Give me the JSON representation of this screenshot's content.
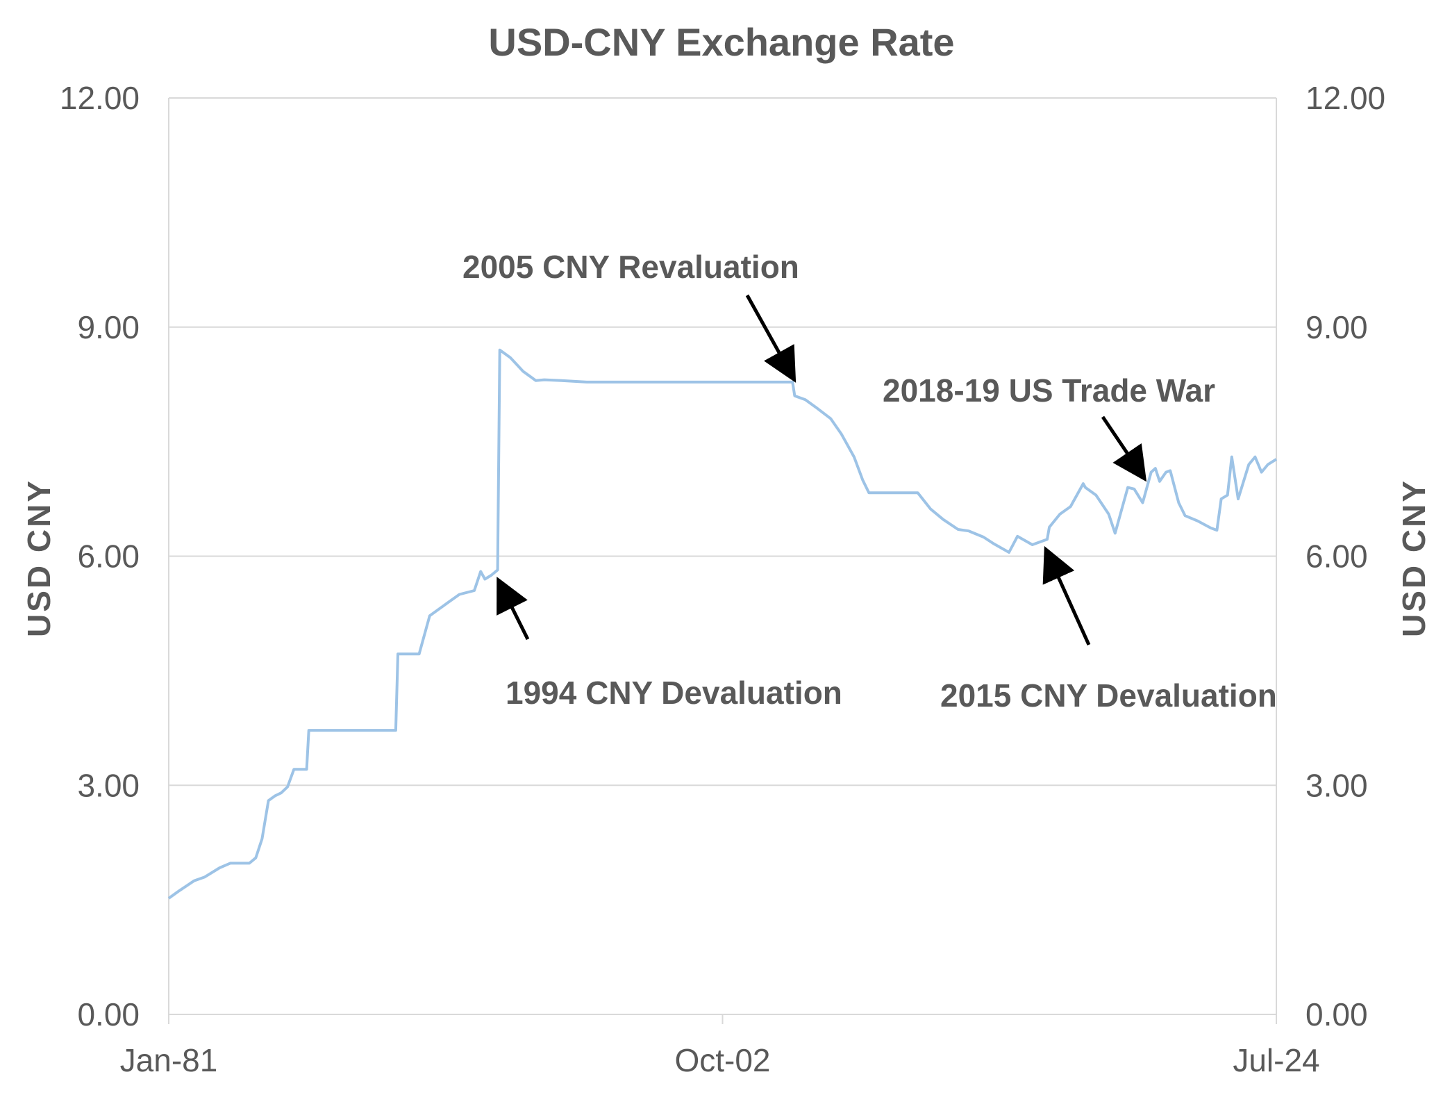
{
  "chart_data": {
    "type": "line",
    "title": "USD-CNY Exchange Rate",
    "ylabel_left": "USD  CNY",
    "ylabel_right": "USD  CNY",
    "xlabel": "",
    "ylim": [
      0,
      12
    ],
    "yticks": [
      "0.00",
      "3.00",
      "6.00",
      "9.00",
      "12.00"
    ],
    "yticks_right": [
      "0.00",
      "3.00",
      "6.00",
      "9.00",
      "12.00"
    ],
    "xlim": [
      "1981-01",
      "2024-07"
    ],
    "xticks": [
      {
        "date": "1981-01",
        "label": "Jan-81"
      },
      {
        "date": "2002-10",
        "label": "Oct-02"
      },
      {
        "date": "2024-07",
        "label": "Jul-24"
      }
    ],
    "grid": true,
    "line_color": "#9dc3e6",
    "series": [
      {
        "x": [
          "1981-01",
          "1981-06",
          "1982-01",
          "1982-06",
          "1983-01",
          "1983-06",
          "1984-01",
          "1984-03",
          "1984-06",
          "1984-09",
          "1984-12",
          "1985-03",
          "1985-06",
          "1985-09",
          "1985-12",
          "1986-03",
          "1986-06",
          "1986-07",
          "1986-09",
          "1986-12",
          "1987-01",
          "1989-12",
          "1990-01",
          "1990-11",
          "1991-04",
          "1992-01",
          "1992-06",
          "1993-01",
          "1993-04",
          "1993-06",
          "1993-09",
          "1993-12",
          "1994-01",
          "1994-06",
          "1994-12",
          "1995-06",
          "1995-10",
          "1996-06",
          "1997-06",
          "2000-01",
          "2003-01",
          "2005-07",
          "2005-08",
          "2006-01",
          "2006-06",
          "2007-01",
          "2007-06",
          "2007-12",
          "2008-04",
          "2008-07",
          "2009-01",
          "2010-06",
          "2010-12",
          "2011-06",
          "2012-01",
          "2012-06",
          "2013-01",
          "2013-06",
          "2014-01",
          "2014-05",
          "2014-12",
          "2015-07",
          "2015-08",
          "2016-01",
          "2016-06",
          "2016-12",
          "2017-01",
          "2017-06",
          "2017-12",
          "2018-03",
          "2018-06",
          "2018-09",
          "2018-12",
          "2019-04",
          "2019-08",
          "2019-10",
          "2019-12",
          "2020-03",
          "2020-05",
          "2020-09",
          "2020-12",
          "2021-06",
          "2021-12",
          "2022-03",
          "2022-05",
          "2022-08",
          "2022-10",
          "2023-01",
          "2023-06",
          "2023-09",
          "2023-12",
          "2024-03",
          "2024-07"
        ],
        "values": [
          1.52,
          1.62,
          1.75,
          1.8,
          1.92,
          1.98,
          1.98,
          1.98,
          2.05,
          2.3,
          2.8,
          2.86,
          2.9,
          2.98,
          3.21,
          3.21,
          3.21,
          3.72,
          3.72,
          3.72,
          3.72,
          3.72,
          4.72,
          4.72,
          5.22,
          5.4,
          5.5,
          5.55,
          5.8,
          5.7,
          5.75,
          5.82,
          8.7,
          8.6,
          8.42,
          8.3,
          8.31,
          8.3,
          8.28,
          8.28,
          8.28,
          8.28,
          8.1,
          8.05,
          7.95,
          7.8,
          7.6,
          7.3,
          7.0,
          6.83,
          6.83,
          6.83,
          6.62,
          6.48,
          6.35,
          6.33,
          6.25,
          6.16,
          6.05,
          6.26,
          6.15,
          6.22,
          6.38,
          6.55,
          6.65,
          6.95,
          6.9,
          6.8,
          6.55,
          6.3,
          6.6,
          6.9,
          6.88,
          6.7,
          7.1,
          7.15,
          6.98,
          7.1,
          7.12,
          6.7,
          6.53,
          6.46,
          6.37,
          6.34,
          6.75,
          6.8,
          7.3,
          6.75,
          7.2,
          7.3,
          7.1,
          7.2,
          7.27
        ]
      }
    ],
    "annotations": [
      {
        "text": "2005 CNY Revaluation",
        "arrow_to_date": "2005-07",
        "arrow_to_value": 8.35
      },
      {
        "text": "2018-19 US Trade War",
        "arrow_to_date": "2019-04",
        "arrow_to_value": 7.05
      },
      {
        "text": "1994  CNY Devaluation",
        "arrow_to_date": "1994-01",
        "arrow_to_value": 5.65
      },
      {
        "text": "2015 CNY Devaluation",
        "arrow_to_date": "2015-07",
        "arrow_to_value": 6.05
      }
    ]
  }
}
